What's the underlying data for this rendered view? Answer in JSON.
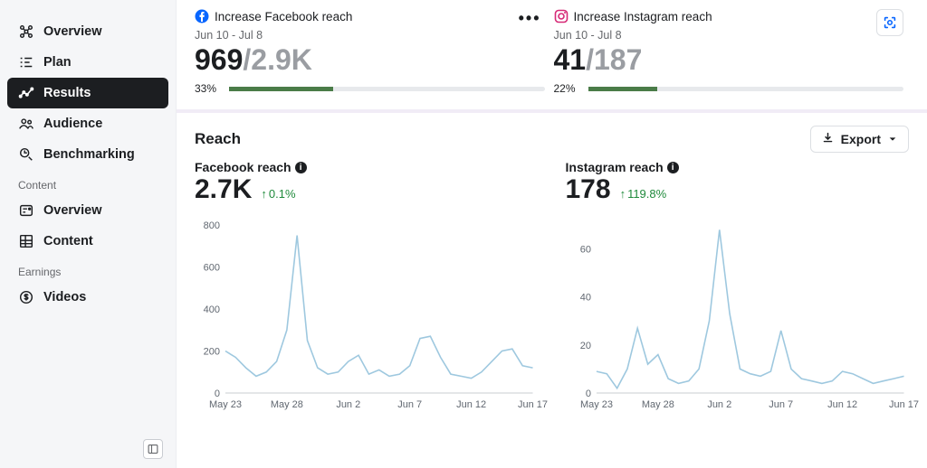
{
  "sidebar": {
    "items_main": [
      {
        "label": "Overview",
        "icon": "network"
      },
      {
        "label": "Plan",
        "icon": "plan"
      },
      {
        "label": "Results",
        "icon": "results",
        "active": true
      },
      {
        "label": "Audience",
        "icon": "audience"
      },
      {
        "label": "Benchmarking",
        "icon": "benchmark"
      }
    ],
    "section_content_label": "Content",
    "items_content": [
      {
        "label": "Overview",
        "icon": "overview2"
      },
      {
        "label": "Content",
        "icon": "grid"
      }
    ],
    "section_earnings_label": "Earnings",
    "items_earnings": [
      {
        "label": "Videos",
        "icon": "dollar"
      }
    ]
  },
  "goals": [
    {
      "brand": "facebook",
      "brand_color": "#0866ff",
      "title": "Increase Facebook reach",
      "date_range": "Jun 10 - Jul 8",
      "value": "969",
      "target": "2.9K",
      "pct_label": "33%",
      "pct": 33
    },
    {
      "brand": "instagram",
      "brand_color": "#d62976",
      "title": "Increase Instagram reach",
      "date_range": "Jun 10 - Jul 8",
      "value": "41",
      "target": "187",
      "pct_label": "22%",
      "pct": 22
    }
  ],
  "progress_fill_color": "#4a7c48",
  "progress_track_color": "#e7e9ec",
  "reach": {
    "section_title": "Reach",
    "export_label": "Export",
    "charts": [
      {
        "title": "Facebook reach",
        "big_value": "2.7K",
        "delta": "0.1%",
        "delta_positive": true,
        "ylim": [
          0,
          800
        ],
        "ytick_step": 200,
        "y_ticks": [
          0,
          200,
          400,
          600,
          800
        ],
        "x_ticks": [
          "May 23",
          "May 28",
          "Jun 2",
          "Jun 7",
          "Jun 12",
          "Jun 17"
        ],
        "line_color": "#9ec8df",
        "background_color": "#ffffff",
        "values": [
          200,
          170,
          120,
          80,
          100,
          150,
          300,
          750,
          250,
          120,
          90,
          100,
          150,
          180,
          90,
          110,
          80,
          90,
          130,
          260,
          270,
          170,
          90,
          80,
          70,
          100,
          150,
          200,
          210,
          130,
          120
        ]
      },
      {
        "title": "Instagram reach",
        "big_value": "178",
        "delta": "119.8%",
        "delta_positive": true,
        "ylim": [
          0,
          70
        ],
        "ytick_step": 20,
        "y_ticks": [
          0,
          20,
          40,
          60
        ],
        "x_ticks": [
          "May 23",
          "May 28",
          "Jun 2",
          "Jun 7",
          "Jun 12",
          "Jun 17"
        ],
        "line_color": "#9ec8df",
        "background_color": "#ffffff",
        "values": [
          9,
          8,
          2,
          10,
          27,
          12,
          16,
          6,
          4,
          5,
          10,
          30,
          68,
          33,
          10,
          8,
          7,
          9,
          26,
          10,
          6,
          5,
          4,
          5,
          9,
          8,
          6,
          4,
          5,
          6,
          7
        ]
      }
    ]
  }
}
